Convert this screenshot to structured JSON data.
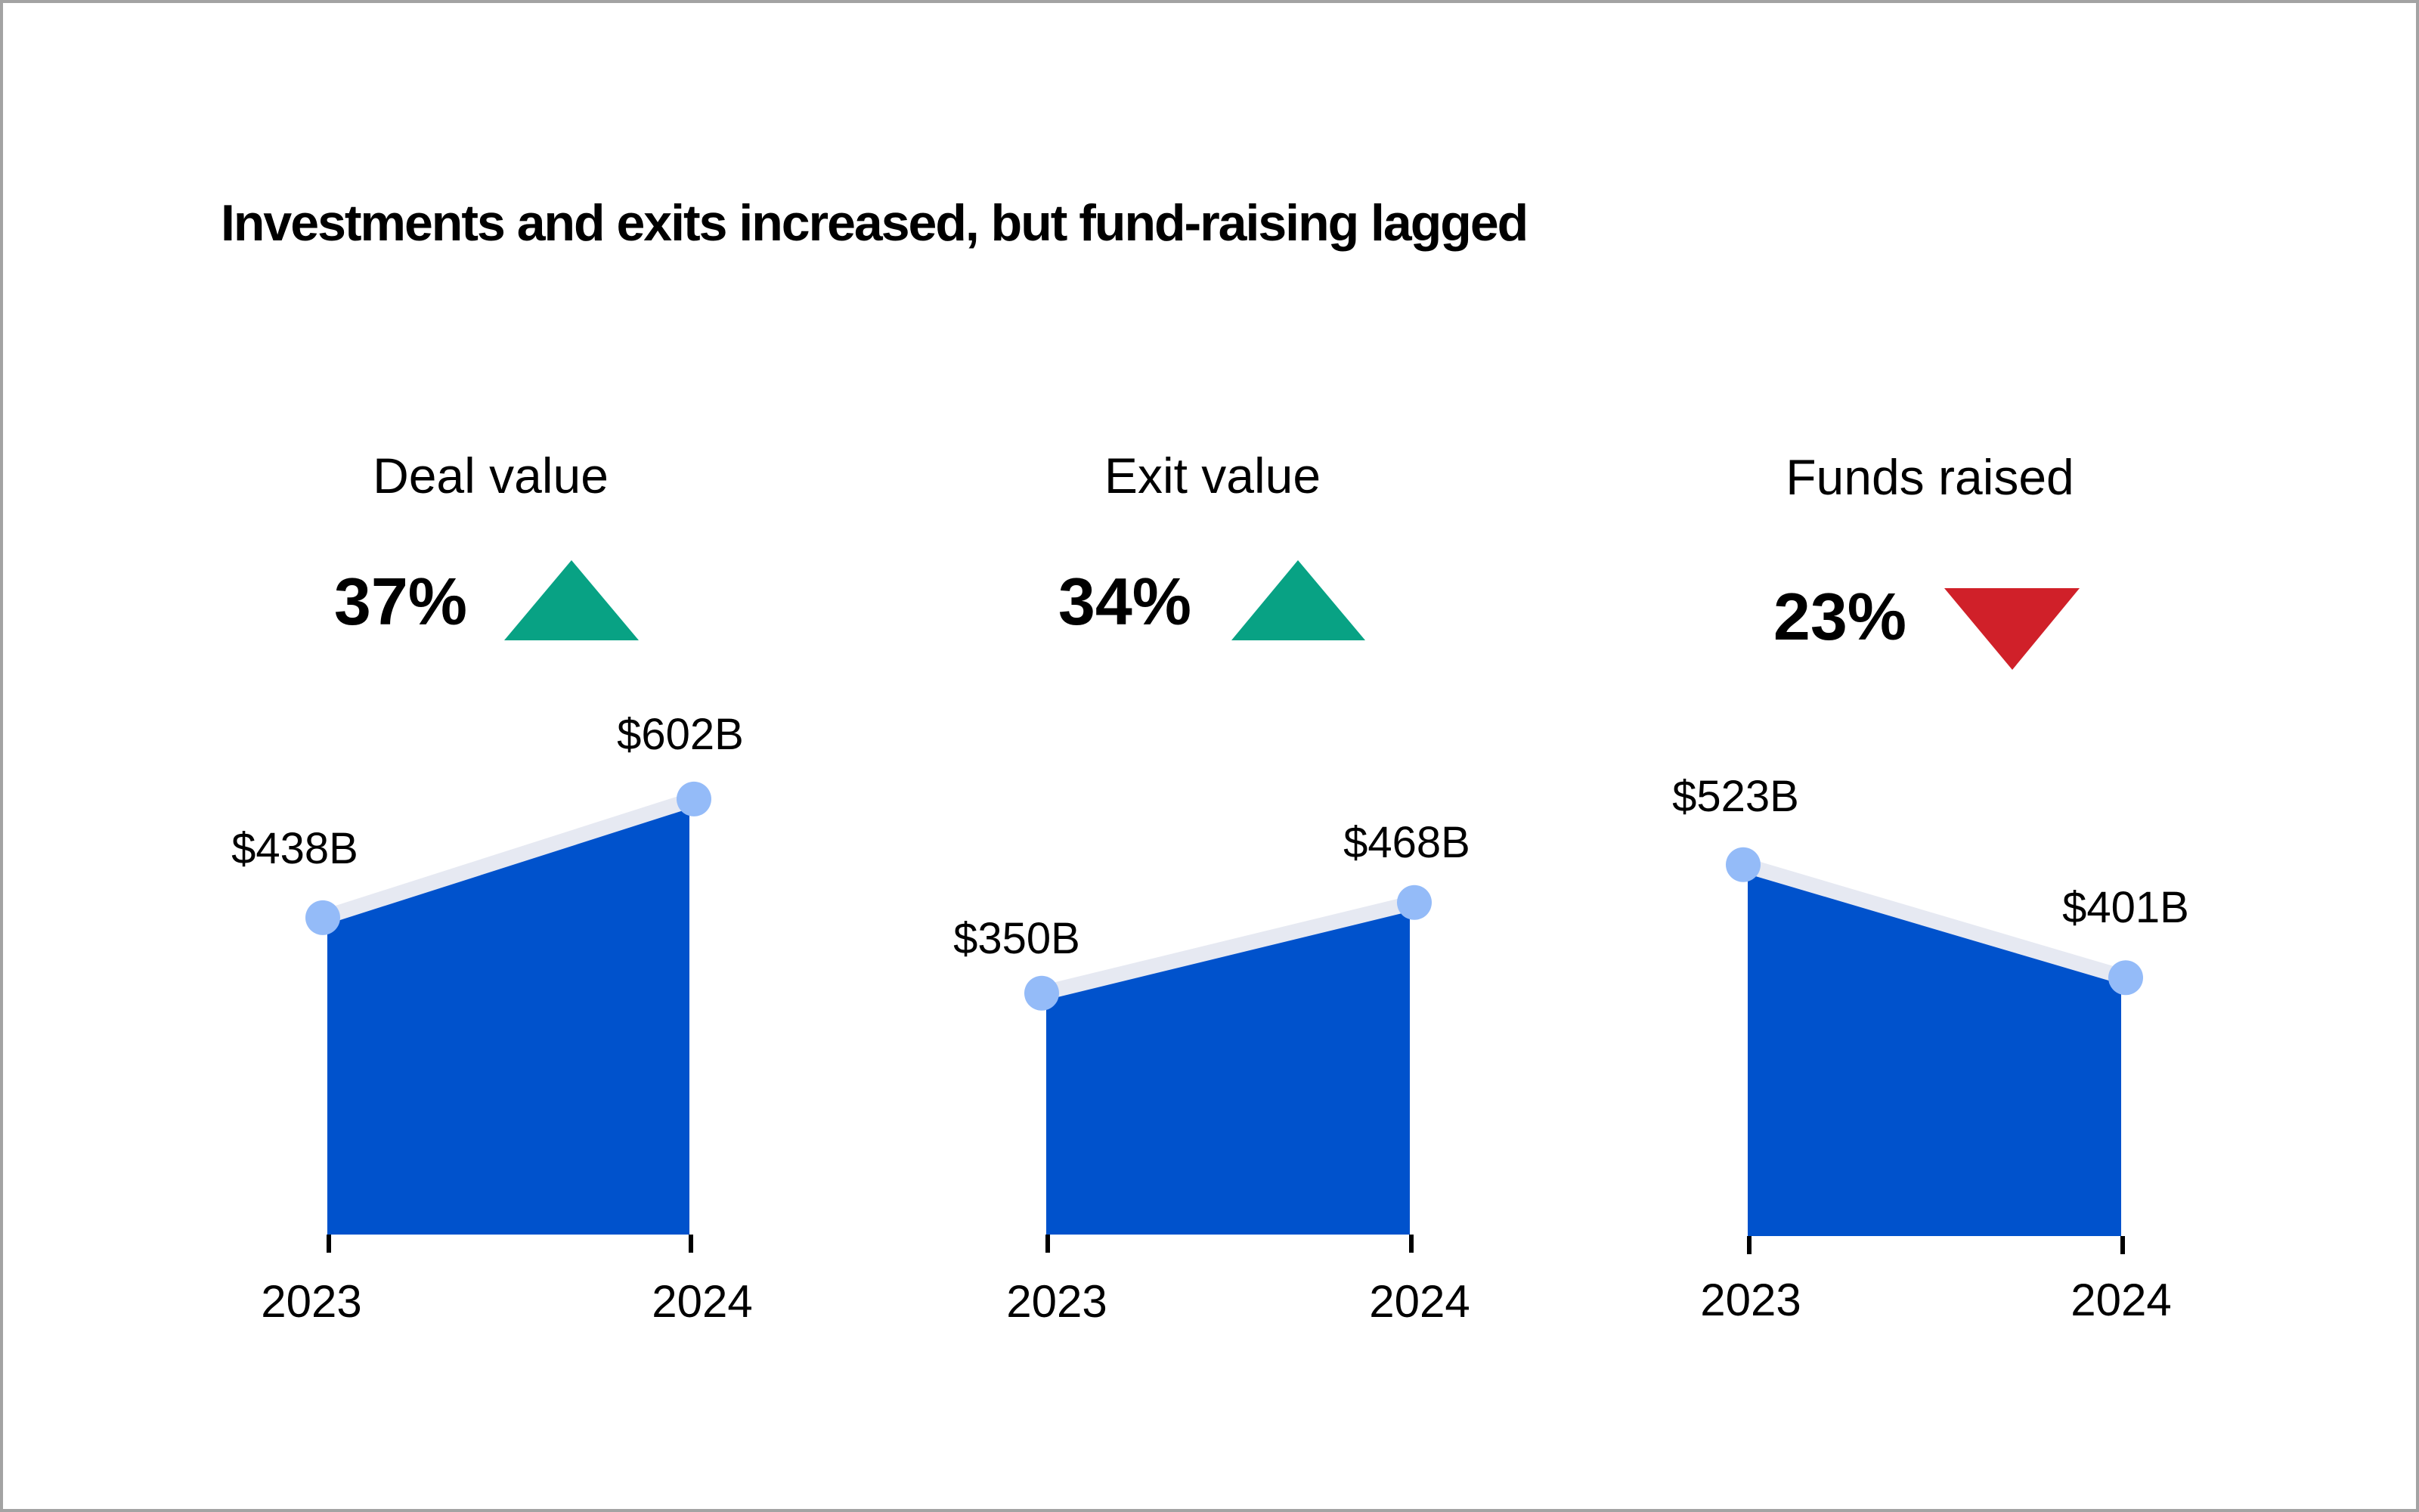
{
  "title": "Investments and exits increased, but fund-raising lagged",
  "colors": {
    "area_fill": "#0052cc",
    "line": "#e6e9f2",
    "point": "#94bbf8",
    "up": "#08a284",
    "down": "#d02029",
    "text": "#000000",
    "frame": "#a3a3a3"
  },
  "panels": [
    {
      "label": "Deal value",
      "change_label": "37%",
      "direction": "up",
      "direction_icon": "triangle-up-icon"
    },
    {
      "label": "Exit value",
      "change_label": "34%",
      "direction": "up",
      "direction_icon": "triangle-up-icon"
    },
    {
      "label": "Funds raised",
      "change_label": "23%",
      "direction": "down",
      "direction_icon": "triangle-down-icon"
    }
  ],
  "chart_data": [
    {
      "type": "area",
      "title": "Deal value",
      "categories": [
        "2023",
        "2024"
      ],
      "values": [
        438,
        602
      ],
      "value_labels": [
        "$438B",
        "$602B"
      ],
      "unit": "$B",
      "change_pct": 37,
      "ylim": [
        0,
        766
      ],
      "grid": false
    },
    {
      "type": "area",
      "title": "Exit value",
      "categories": [
        "2023",
        "2024"
      ],
      "values": [
        350,
        468
      ],
      "value_labels": [
        "$350B",
        "$468B"
      ],
      "unit": "$B",
      "change_pct": 34,
      "ylim": [
        36,
        757
      ],
      "grid": false
    },
    {
      "type": "area",
      "title": "Funds raised",
      "categories": [
        "2023",
        "2024"
      ],
      "values": [
        523,
        401
      ],
      "value_labels": [
        "$523B",
        "$401B"
      ],
      "unit": "$B",
      "change_pct": -23,
      "ylim": [
        122,
        722
      ],
      "grid": false
    }
  ]
}
